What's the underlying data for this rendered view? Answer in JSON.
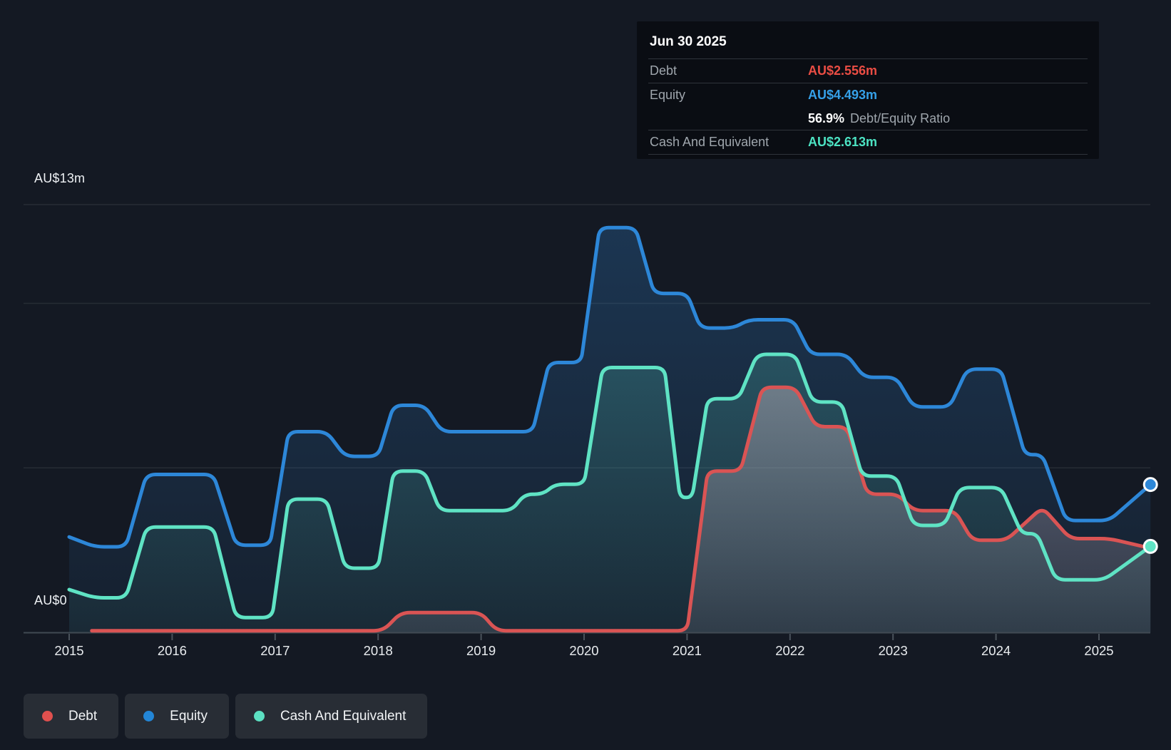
{
  "y_axis": {
    "top_label": "AU$13m",
    "bottom_label": "AU$0"
  },
  "x_axis": {
    "years": [
      "2015",
      "2016",
      "2017",
      "2018",
      "2019",
      "2020",
      "2021",
      "2022",
      "2023",
      "2024",
      "2025"
    ]
  },
  "tooltip": {
    "date": "Jun 30 2025",
    "rows": [
      {
        "label": "Debt",
        "value": "AU$2.556m",
        "color": "#ea4d44"
      },
      {
        "label": "Equity",
        "value": "AU$4.493m",
        "color": "#35a0e8"
      },
      {
        "label": "Cash And Equivalent",
        "value": "AU$2.613m",
        "color": "#4ce3c3"
      }
    ],
    "ratio": {
      "value": "56.9%",
      "label": "Debt/Equity Ratio"
    }
  },
  "legend": {
    "items": [
      {
        "label": "Debt",
        "color": "#e0504e"
      },
      {
        "label": "Equity",
        "color": "#2386d7"
      },
      {
        "label": "Cash And Equivalent",
        "color": "#5ce0c2"
      }
    ]
  },
  "chart_data": {
    "type": "area",
    "x_min": 2015,
    "x_max": 2025.5,
    "y_max": 13,
    "y_unit": "AU$m",
    "gridlines": [
      13,
      10,
      5,
      0
    ],
    "grid_color": "#262c34",
    "axis_color": "#414a53",
    "tick_color": "#4a525b",
    "year_label_color": "#e9ecef",
    "series": [
      {
        "name": "Equity",
        "color": "#2d87d8",
        "fill_top": "rgba(45,120,190,0.30)",
        "fill_bottom": "rgba(45,120,190,0.07)",
        "points": [
          [
            2015,
            2.9
          ],
          [
            2015.25,
            2.6
          ],
          [
            2015.55,
            2.6
          ],
          [
            2015.75,
            4.8
          ],
          [
            2016.4,
            4.8
          ],
          [
            2016.62,
            2.65
          ],
          [
            2016.95,
            2.65
          ],
          [
            2017.13,
            6.1
          ],
          [
            2017.5,
            6.1
          ],
          [
            2017.68,
            5.35
          ],
          [
            2018,
            5.35
          ],
          [
            2018.15,
            6.9
          ],
          [
            2018.45,
            6.9
          ],
          [
            2018.62,
            6.1
          ],
          [
            2019.5,
            6.1
          ],
          [
            2019.66,
            8.2
          ],
          [
            2019.97,
            8.2
          ],
          [
            2020.15,
            12.3
          ],
          [
            2020.5,
            12.3
          ],
          [
            2020.68,
            10.3
          ],
          [
            2021,
            10.3
          ],
          [
            2021.13,
            9.25
          ],
          [
            2021.45,
            9.25
          ],
          [
            2021.6,
            9.5
          ],
          [
            2022.03,
            9.5
          ],
          [
            2022.2,
            8.45
          ],
          [
            2022.55,
            8.45
          ],
          [
            2022.72,
            7.75
          ],
          [
            2023.03,
            7.75
          ],
          [
            2023.2,
            6.85
          ],
          [
            2023.55,
            6.85
          ],
          [
            2023.72,
            8
          ],
          [
            2024.05,
            8
          ],
          [
            2024.28,
            5.4
          ],
          [
            2024.45,
            5.4
          ],
          [
            2024.68,
            3.4
          ],
          [
            2025.1,
            3.4
          ],
          [
            2025.5,
            4.493
          ]
        ]
      },
      {
        "name": "Cash And Equivalent",
        "color": "#5fe3c4",
        "fill_top": "rgba(95,225,200,0.20)",
        "fill_bottom": "rgba(95,225,200,0.05)",
        "points": [
          [
            2015,
            1.3
          ],
          [
            2015.25,
            1.05
          ],
          [
            2015.55,
            1.05
          ],
          [
            2015.75,
            3.2
          ],
          [
            2016.4,
            3.2
          ],
          [
            2016.62,
            0.45
          ],
          [
            2016.97,
            0.45
          ],
          [
            2017.13,
            4.05
          ],
          [
            2017.5,
            4.05
          ],
          [
            2017.68,
            1.95
          ],
          [
            2018,
            1.95
          ],
          [
            2018.15,
            4.9
          ],
          [
            2018.45,
            4.9
          ],
          [
            2018.6,
            3.7
          ],
          [
            2019.3,
            3.7
          ],
          [
            2019.42,
            4.2
          ],
          [
            2019.6,
            4.2
          ],
          [
            2019.72,
            4.5
          ],
          [
            2020,
            4.5
          ],
          [
            2020.18,
            8.05
          ],
          [
            2020.78,
            8.05
          ],
          [
            2020.93,
            4.1
          ],
          [
            2021.05,
            4.1
          ],
          [
            2021.2,
            7.1
          ],
          [
            2021.5,
            7.1
          ],
          [
            2021.68,
            8.45
          ],
          [
            2022.05,
            8.45
          ],
          [
            2022.22,
            7
          ],
          [
            2022.5,
            7
          ],
          [
            2022.7,
            4.75
          ],
          [
            2023.03,
            4.75
          ],
          [
            2023.2,
            3.25
          ],
          [
            2023.5,
            3.25
          ],
          [
            2023.65,
            4.4
          ],
          [
            2024.05,
            4.4
          ],
          [
            2024.25,
            3
          ],
          [
            2024.4,
            3
          ],
          [
            2024.58,
            1.6
          ],
          [
            2025.05,
            1.6
          ],
          [
            2025.5,
            2.613
          ]
        ]
      },
      {
        "name": "Debt",
        "color": "#da5454",
        "fill_top": "rgba(208,186,196,0.42)",
        "fill_bottom": "rgba(185,175,190,0.14)",
        "points": [
          [
            2015.22,
            0.05
          ],
          [
            2018.05,
            0.05
          ],
          [
            2018.22,
            0.6
          ],
          [
            2019,
            0.6
          ],
          [
            2019.15,
            0.05
          ],
          [
            2021,
            0.05
          ],
          [
            2021.2,
            4.9
          ],
          [
            2021.52,
            4.9
          ],
          [
            2021.73,
            7.45
          ],
          [
            2022.05,
            7.45
          ],
          [
            2022.25,
            6.25
          ],
          [
            2022.55,
            6.25
          ],
          [
            2022.75,
            4.2
          ],
          [
            2023.05,
            4.2
          ],
          [
            2023.2,
            3.7
          ],
          [
            2023.6,
            3.7
          ],
          [
            2023.77,
            2.8
          ],
          [
            2024.1,
            2.8
          ],
          [
            2024.45,
            3.8
          ],
          [
            2024.72,
            2.85
          ],
          [
            2025.1,
            2.85
          ],
          [
            2025.5,
            2.556
          ]
        ]
      }
    ],
    "end_markers": [
      {
        "series": 0,
        "x": 2025.5,
        "y": 4.493
      },
      {
        "series": 1,
        "x": 2025.5,
        "y": 2.613
      }
    ]
  }
}
